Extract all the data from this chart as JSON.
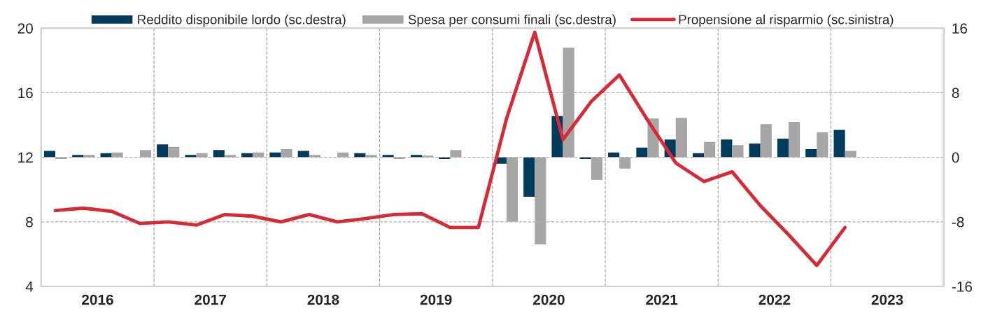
{
  "chart_data": {
    "type": "bar",
    "x": [
      2016.125,
      2016.375,
      2016.625,
      2016.875,
      2017.125,
      2017.375,
      2017.625,
      2017.875,
      2018.125,
      2018.375,
      2018.625,
      2018.875,
      2019.125,
      2019.375,
      2019.625,
      2019.875,
      2020.125,
      2020.375,
      2020.625,
      2020.875,
      2021.125,
      2021.375,
      2021.625,
      2021.875,
      2022.125,
      2022.375,
      2022.625,
      2022.875,
      2023.125
    ],
    "series": [
      {
        "name": "Reddito disponibile lordo (sc.destra)",
        "axis": "y2",
        "color": "#003a5c",
        "values": [
          0.8,
          0.3,
          0.5,
          0,
          1.6,
          0.3,
          0.9,
          0.5,
          0.6,
          0.8,
          0,
          0.5,
          0.3,
          0.3,
          -0.2,
          0,
          -0.8,
          -4.9,
          5.1,
          -0.2,
          0.6,
          1.2,
          2.2,
          0.5,
          2.2,
          1.7,
          2.3,
          1.0,
          3.4
        ]
      },
      {
        "name": "Spesa per consumi finali (sc.destra)",
        "axis": "y2",
        "color": "#a6a6a6",
        "values": [
          -0.2,
          0.3,
          0.6,
          0.9,
          1.3,
          0.5,
          0.3,
          0.6,
          1.0,
          0.3,
          0.6,
          0.3,
          -0.2,
          0.2,
          0.9,
          0,
          -8.0,
          -10.8,
          13.6,
          -2.8,
          -1.4,
          4.8,
          4.9,
          1.9,
          1.5,
          4.1,
          4.4,
          3.1,
          0.8
        ]
      },
      {
        "name": "Propensione al risparmio (sc.sinistra)",
        "type": "line",
        "axis": "y",
        "color": "#d62a36",
        "values": [
          8.7,
          8.85,
          8.65,
          7.9,
          8.0,
          7.8,
          8.45,
          8.35,
          8.0,
          8.45,
          8.0,
          8.2,
          8.45,
          8.5,
          7.65,
          7.65,
          14.4,
          19.75,
          13.1,
          15.45,
          17.1,
          14.3,
          11.65,
          10.5,
          11.1,
          9.0,
          7.2,
          5.3,
          7.65
        ]
      }
    ],
    "xlim": [
      2016,
      2024
    ],
    "xticks": [
      {
        "value": 2016.5,
        "label": "2016"
      },
      {
        "value": 2017.5,
        "label": "2017"
      },
      {
        "value": 2018.5,
        "label": "2018"
      },
      {
        "value": 2019.5,
        "label": "2019"
      },
      {
        "value": 2020.5,
        "label": "2020"
      },
      {
        "value": 2021.5,
        "label": "2021"
      },
      {
        "value": 2022.5,
        "label": "2022"
      },
      {
        "value": 2023.5,
        "label": "2023"
      }
    ],
    "ylim": [
      4,
      20
    ],
    "yticks": [
      4,
      8,
      12,
      16,
      20
    ],
    "y2lim": [
      -16,
      16
    ],
    "y2ticks": [
      -16,
      -8,
      0,
      8,
      16
    ],
    "ref_lines": [
      {
        "axis": "x",
        "value": 2017,
        "color": "#a6a6a6",
        "line_style": "dashed"
      },
      {
        "axis": "x",
        "value": 2018,
        "color": "#a6a6a6",
        "line_style": "dashed"
      },
      {
        "axis": "x",
        "value": 2019,
        "color": "#a6a6a6",
        "line_style": "dashed"
      },
      {
        "axis": "x",
        "value": 2020,
        "color": "#a6a6a6",
        "line_style": "dashed"
      },
      {
        "axis": "x",
        "value": 2021,
        "color": "#a6a6a6",
        "line_style": "dashed"
      },
      {
        "axis": "x",
        "value": 2022,
        "color": "#a6a6a6",
        "line_style": "dashed"
      },
      {
        "axis": "x",
        "value": 2023,
        "color": "#a6a6a6",
        "line_style": "dashed"
      }
    ],
    "grid": "y",
    "legend": "top"
  }
}
